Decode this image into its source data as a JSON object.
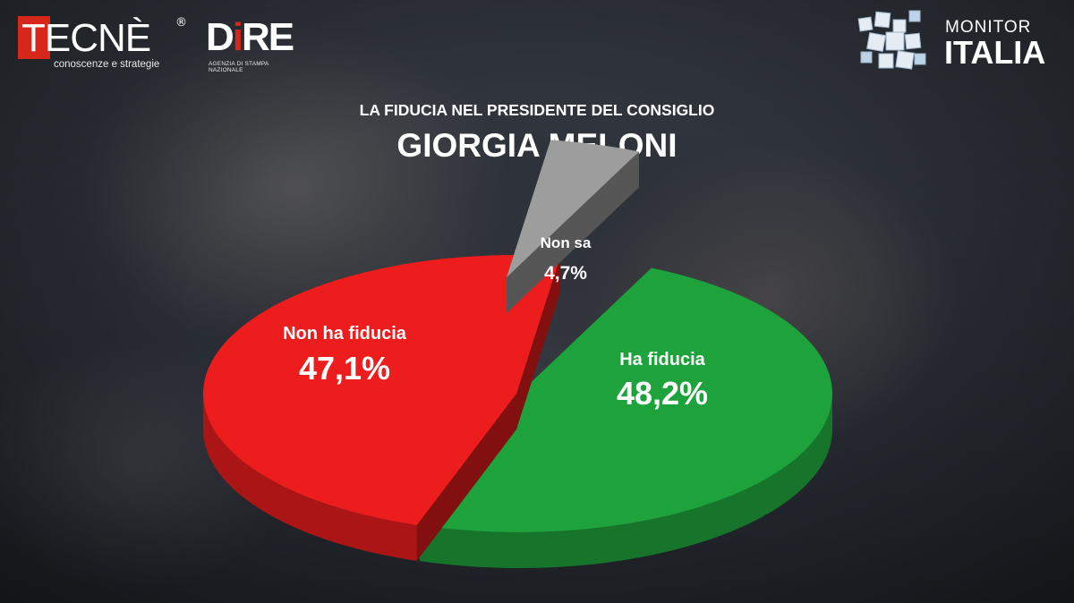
{
  "logos": {
    "tecne": {
      "name": "TECNÈ",
      "reg": "®",
      "tagline": "conoscenze e strategie"
    },
    "dire": {
      "name_part1": "D",
      "name_part2": "i",
      "name_part3": "RE",
      "tagline": "AGENZIA DI STAMPA NAZIONALE"
    },
    "monitor": {
      "line1": "MONITOR",
      "line2": "ITALIA"
    }
  },
  "chart_data": {
    "type": "pie",
    "title": "GIORGIA MELONI",
    "subtitle": "LA FIDUCIA NEL PRESIDENTE DEL CONSIGLIO",
    "slices": [
      {
        "label": "Ha fiducia",
        "value": 48.2,
        "value_label": "48,2%",
        "color": "#1ea33c"
      },
      {
        "label": "Non ha fiducia",
        "value": 47.1,
        "value_label": "47,1%",
        "color": "#ee1d1d"
      },
      {
        "label": "Non sa",
        "value": 4.7,
        "value_label": "4,7%",
        "color": "#9d9d9d"
      }
    ],
    "legend": "none",
    "labels_on_slices": true,
    "exploded": true,
    "3d": true
  }
}
